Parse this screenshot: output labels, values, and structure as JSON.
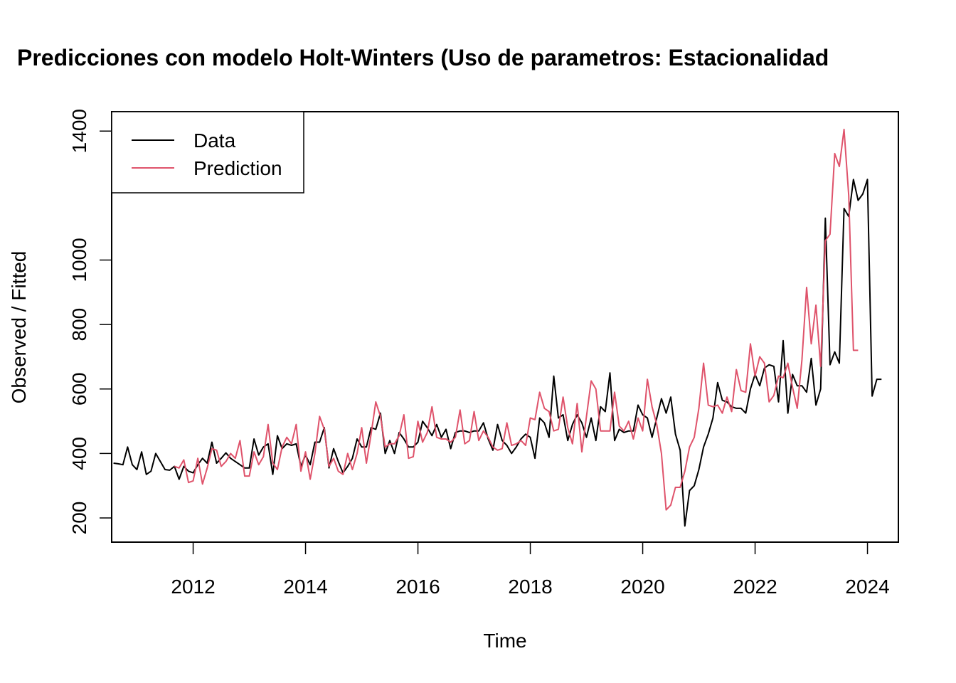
{
  "chart_data": {
    "type": "line",
    "title": "Predicciones con modelo Holt-Winters (Uso de parametros: Estacionalidad",
    "xlabel": "Time",
    "ylabel": "Observed / Fitted",
    "xlim": [
      2010.55,
      2024.55
    ],
    "ylim": [
      125,
      1460
    ],
    "x_ticks": [
      2012,
      2014,
      2016,
      2018,
      2020,
      2022,
      2024
    ],
    "y_ticks": [
      200,
      400,
      600,
      800,
      1000,
      1400
    ],
    "grid": false,
    "legend_position": "top-left",
    "x_start": 2010.5833,
    "x_step": 0.083333,
    "series": [
      {
        "name": "Data",
        "color": "#000000",
        "values": [
          370,
          368,
          365,
          420,
          365,
          350,
          405,
          335,
          345,
          400,
          375,
          350,
          348,
          360,
          320,
          360,
          345,
          340,
          365,
          385,
          370,
          435,
          370,
          385,
          402,
          385,
          375,
          365,
          355,
          355,
          445,
          395,
          420,
          430,
          335,
          455,
          415,
          430,
          425,
          430,
          360,
          395,
          365,
          435,
          435,
          480,
          355,
          415,
          375,
          340,
          360,
          385,
          445,
          420,
          420,
          480,
          475,
          525,
          400,
          440,
          400,
          465,
          445,
          420,
          420,
          435,
          500,
          480,
          455,
          490,
          450,
          475,
          415,
          465,
          470,
          470,
          465,
          470,
          470,
          495,
          445,
          410,
          490,
          440,
          425,
          400,
          420,
          445,
          460,
          450,
          385,
          510,
          495,
          450,
          640,
          510,
          520,
          440,
          490,
          520,
          495,
          450,
          510,
          440,
          545,
          530,
          650,
          440,
          475,
          465,
          470,
          470,
          550,
          520,
          510,
          450,
          510,
          570,
          525,
          575,
          460,
          410,
          175,
          285,
          300,
          350,
          420,
          460,
          510,
          620,
          565,
          560,
          545,
          540,
          540,
          525,
          600,
          645,
          610,
          665,
          675,
          670,
          560,
          750,
          525,
          645,
          610,
          610,
          590,
          695,
          550,
          600,
          1130,
          675,
          715,
          680,
          1160,
          1135,
          1250,
          1185,
          1205,
          1250,
          578,
          630,
          630
        ]
      },
      {
        "name": "Prediction",
        "color": "#DF536B",
        "values": [
          null,
          null,
          null,
          null,
          null,
          null,
          null,
          null,
          null,
          null,
          null,
          null,
          null,
          360,
          355,
          380,
          310,
          315,
          385,
          305,
          355,
          415,
          410,
          360,
          375,
          400,
          385,
          440,
          330,
          330,
          405,
          365,
          390,
          490,
          370,
          350,
          420,
          450,
          430,
          490,
          345,
          405,
          320,
          400,
          515,
          475,
          360,
          385,
          345,
          335,
          400,
          350,
          400,
          480,
          370,
          460,
          560,
          515,
          420,
          430,
          430,
          455,
          520,
          385,
          390,
          500,
          435,
          465,
          545,
          450,
          445,
          445,
          435,
          450,
          535,
          430,
          440,
          530,
          440,
          470,
          450,
          420,
          410,
          415,
          495,
          425,
          430,
          440,
          425,
          510,
          505,
          590,
          540,
          530,
          470,
          475,
          575,
          480,
          430,
          555,
          405,
          515,
          625,
          600,
          470,
          470,
          470,
          590,
          485,
          470,
          500,
          445,
          510,
          470,
          630,
          545,
          490,
          400,
          225,
          240,
          295,
          295,
          345,
          420,
          450,
          540,
          680,
          550,
          545,
          550,
          525,
          575,
          530,
          660,
          595,
          590,
          740,
          640,
          700,
          680,
          560,
          580,
          640,
          635,
          680,
          605,
          540,
          690,
          915,
          740,
          860,
          670,
          1060,
          1080,
          1330,
          1290,
          1405,
          1200,
          720,
          720
        ]
      }
    ]
  }
}
